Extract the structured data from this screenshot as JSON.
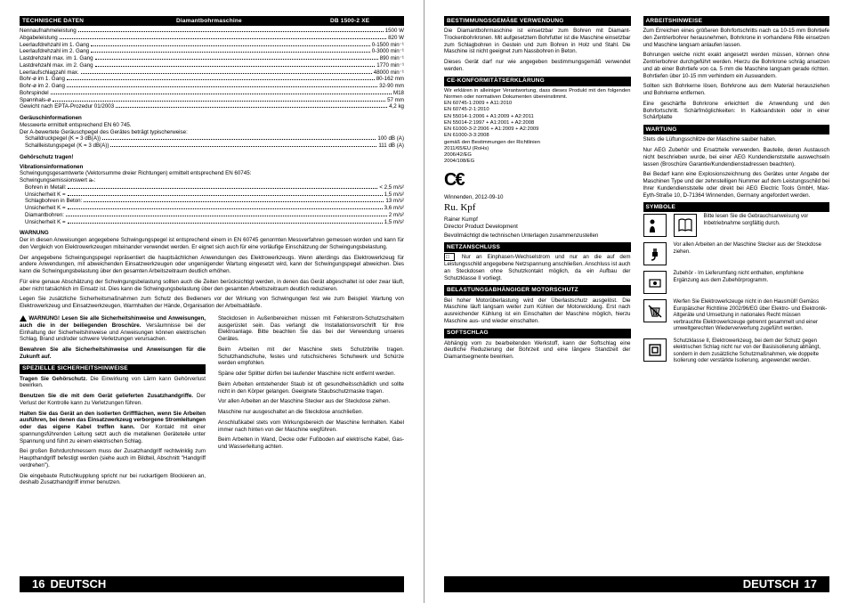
{
  "tech_header": {
    "c1": "TECHNISCHE DATEN",
    "c2": "Diamantbohrmaschine",
    "c3": "DB 1500-2 XE"
  },
  "specs": [
    {
      "l": "Nennaufnahmeleistung",
      "v": "1500 W"
    },
    {
      "l": "Abgabeleistung",
      "v": "820 W"
    },
    {
      "l": "Leerlaufdrehzahl im 1. Gang",
      "v": "0-1500 min⁻¹"
    },
    {
      "l": "Leerlaufdrehzahl im 2. Gang",
      "v": "0-3000 min⁻¹"
    },
    {
      "l": "Lastdrehzahl max. im 1. Gang",
      "v": "890 min⁻¹"
    },
    {
      "l": "Lastdrehzahl max. im 2. Gang",
      "v": "1770 min⁻¹"
    },
    {
      "l": "Leerlaufschlagzahl max.",
      "v": "48000 min⁻¹"
    },
    {
      "l": "Bohr-ø im 1. Gang",
      "v": "80-162 mm"
    },
    {
      "l": "Bohr-ø im 2. Gang",
      "v": "32-90 mm"
    },
    {
      "l": "Bohrspindel",
      "v": "M18"
    },
    {
      "l": "Spannhals-ø",
      "v": "57 mm"
    },
    {
      "l": "Gewicht nach EPTA-Prozedur 01/2003",
      "v": "4,2 kg"
    }
  ],
  "noise_title": "Geräuschinformationen",
  "noise_intro": "Messwerte ermittelt entsprechend EN 60 745.\nDer A-bewertete Geräuschpegel des Gerätes beträgt typischerweise:",
  "noise_specs": [
    {
      "l": "Schalldruckpegel (K = 3 dB(A))",
      "v": "100 dB (A)"
    },
    {
      "l": "Schallleistungspegel (K = 3 dB(A))",
      "v": "111 dB (A)"
    }
  ],
  "ear_protect": "Gehörschutz tragen!",
  "vib_title": "Vibrationsinformationen",
  "vib_intro": "Schwingungsgesamtwerte (Vektorsumme dreier Richtungen) ermittelt entsprechend EN 60745:\nSchwingungsemissionswert aₕ:",
  "vib_specs": [
    {
      "l": "Bohren in Metall:",
      "v": "< 2,5 m/s²"
    },
    {
      "l": "Unsicherheit K =",
      "v": "1,5 m/s²"
    },
    {
      "l": "Schlagbohren in Beton:",
      "v": "13 m/s²"
    },
    {
      "l": "Unsicherheit K =",
      "v": "3,6 m/s²"
    },
    {
      "l": "Diamantbohren:",
      "v": "2 m/s²"
    },
    {
      "l": "Unsicherheit K =",
      "v": "1,5 m/s²"
    }
  ],
  "warning_title": "WARNUNG",
  "warning_paras": [
    "Der in diesen Anweisungen angegebene Schwingungspegel ist entsprechend einem in EN 60745 genormten Messverfahren gemessen worden und kann für den Vergleich von Elektrowerkzeugen miteinander verwendet werden. Er eignet sich auch für eine vorläufige Einschätzung der Schwingungsbelastung.",
    "Der angegebene Schwingungspegel repräsentiert die hauptsächlichen Anwendungen des Elektrowerkzeugs. Wenn allerdings das Elektrowerkzeug für andere Anwendungen, mit abweichenden Einsatzwerkzeugen oder ungenügender Wartung eingesetzt wird, kann der Schwingungspegel abweichen. Dies kann die Schwingungsbelastung über den gesamten Arbeitszeitraum deutlich erhöhen.",
    "Für eine genaue Abschätzung der Schwingungsbelastung sollten auch die Zeiten berücksichtigt werden, in denen das Gerät abgeschaltet ist oder zwar läuft, aber nicht tatsächlich im Einsatz ist. Dies kann die Schwingungsbelastung über den gesamten Arbeitszeitraum deutlich reduzieren.",
    "Legen Sie zusätzliche Sicherheitsmaßnahmen zum Schutz des Bedieners vor der Wirkung von Schwingungen fest wie zum Beispiel: Wartung von Elektrowerkzeug und Einsatzwerkzeugen, Warmhalten der Hände, Organisation der Arbeitsabläufe."
  ],
  "warn_box": "WARNUNG! Lesen Sie alle Sicherheitshinweise und Anweisungen, auch die in der beiliegenden Broschüre.",
  "warn_box2": "Versäumnisse bei der Einhaltung der Sicherheitshinweise und Anweisungen können elektrischen Schlag, Brand und/oder schwere Verletzungen verursachen.",
  "warn_box3": "Bewahren Sie alle Sicherheitshinweise und Anweisungen für die Zukunft auf.",
  "safety_hdr": "SPEZIELLE SICHERHEITSHINWEISE",
  "safety_paras": [
    "<b>Tragen Sie Gehörschutz.</b> Die Einwirkung von Lärm kann Gehörverlust bewirken.",
    "<b>Benutzen Sie die mit dem Gerät gelieferten Zusatzhandgriffe.</b> Der Verlust der Kontrolle kann zu Verletzungen führen.",
    "<b>Halten Sie das Gerät an den isolierten Griffflächen, wenn Sie Arbeiten ausführen, bei denen das Einsatzwerkzeug verborgene Stromleitungen oder das eigene Kabel treffen kann.</b> Der Kontakt mit einer spannungsführenden Leitung setzt auch die metallenen Geräteteile unter Spannung und führt zu einem elektrischen Schlag.",
    "Bei großen Bohrdurchmessern muss der Zusatzhandgriff rechtwinklig zum Haupthandgriff befestigt werden (siehe auch im Bildteil, Abschnitt \"Handgriff verdrehen\").",
    "Die eingebaute Rutschkupplung spricht nur bei ruckartigem Blockieren an, deshalb Zusatzhandgriff immer benutzen."
  ],
  "col2_paras": [
    "Steckdosen in Außenbereichen müssen mit Fehlerstrom-Schutzschaltern ausgerüstet sein. Das verlangt die Installationsvorschrift für Ihre Elektroanlage. Bitte beachten Sie das bei der Verwendung unseres Gerätes.",
    "Beim Arbeiten mit der Maschine stets Schutzbrille tragen. Schutzhandschuhe, festes und rutschsicheres Schuhwerk und Schürze werden empfohlen.",
    "Späne oder Splitter dürfen bei laufender Maschine nicht entfernt werden.",
    "Beim Arbeiten entstehender Staub ist oft gesundheitsschädlich und sollte nicht in den Körper gelangen. Geeignete Staubschutzmaske tragen.",
    "Vor allen Arbeiten an der Maschine Stecker aus der Steckdose ziehen.",
    "Maschine nur ausgeschaltet an die Steckdose anschließen.",
    "Anschlußkabel stets vom Wirkungsbereich der Maschine fernhalten. Kabel immer nach hinten von der Maschine wegführen.",
    "Beim Arbeiten in Wand, Decke oder Fußboden auf elektrische Kabel, Gas- und Wasserleitung achten."
  ],
  "use_hdr": "BESTIMMUNGSGEMÄßE VERWENDUNG",
  "use_paras": [
    "Die Diamantbohrmaschine ist einsetzbar zum Bohren mit Diamant-Trockenbohrkronen. Mit aufgesetztem Bohrfutter ist die Maschine einsetzbar zum Schlagbohren in Gestein und zum Bohren in Holz und Stahl. Die Maschine ist nicht geeignet zum Nassbohren in Beton.",
    "Dieses Gerät darf nur wie angegeben bestimmungsgemäß verwendet werden."
  ],
  "ce_hdr": "CE-KONFORMITÄTSERKLÄRUNG",
  "ce_text": "Wir erklären in alleiniger Verantwortung, dass dieses Produkt mit den folgenden Normen oder normativen Dokumenten übereinstimmt.\nEN 60745-1:2009 + A11:2010\nEN 60745-2-1:2010\nEN 55014-1:2006 + A1:2009 + A2:2011\nEN 55014-2:1997 + A1:2001 + A2:2008\nEN 61000-3-2:2006 + A1:2009 + A2:2009\nEN 61000-3-3:2008\ngemäß den Bestimmungen der Richtlinien\n2011/65/EU (RoHs)\n2006/42/EG\n2004/108/EG",
  "ce_date": "Winnenden, 2012-09-10",
  "ce_name": "Rainer Kumpf",
  "ce_role": "Director Product Development",
  "ce_auth": "Bevollmächtigt die technischen Unterlagen zusammenzustellen",
  "netz_hdr": "NETZANSCHLUSS",
  "netz_text": "Nur an Einphasen-Wechselstrom und nur an die auf dem Leistungsschild angegebene Netzspannung anschließen. Anschluss ist auch an Steckdosen ohne Schutzkontakt möglich, da ein Aufbau der Schutzklasse II vorliegt.",
  "motor_hdr": "BELASTUNGSABHÄNGIGER MOTORSCHUTZ",
  "motor_text": "Bei hoher Motorüberlastung wird der Überlastschutz ausgelöst. Die Maschine läuft langsam weiter zum Kühlen der Motorwicklung. Erst nach ausreichender Kühlung ist ein Einschalten der Maschine möglich, hierzu Maschine aus- und wieder einschalten.",
  "soft_hdr": "SOFTSCHLAG",
  "soft_text": "Abhängig vom zu bearbeitenden Werkstoff, kann der Softschlag eine deutliche Reduzierung der Bohrzeit und eine längere Standzeit der Diamantsegmente bewirken.",
  "arbeit_hdr": "ARBEITSHINWEISE",
  "arbeit_paras": [
    "Zum Erreichen eines größeren Bohrfortschritts nach ca 10-15 mm Bohrtiefe den Zentrierbohrer herausnehmen, Bohrkrone in vorhandene Rille einsetzen und Maschine langsam anlaufen lassen.",
    "Bohrungen welche nicht exakt angesetzt werden müssen, können ohne Zentrierbohrer durchgeführt werden. Hierzu die Bohrkrone schräg ansetzen und ab einer Bohrtiefe von ca. 5 mm die Maschine langsam gerade richten. Bohrtiefen über 10-15 mm verhindern ein Auswandern.",
    "Sollten sich Bohrkerne lösen, Bohrkrone aus dem Material herausziehen und Bohrkerne entfernen.",
    "Eine geschärfte Bohrkrone erleichtert die Anwendung und den Bohrfortschritt. Schärfmöglichkeiten: In Kalksandstein oder in einer Schärfplatte"
  ],
  "wartung_hdr": "WARTUNG",
  "wartung_paras": [
    "Stets die Lüftungsschlitze der Maschine sauber halten.",
    "Nur AEG Zubehör und Ersatzteile verwenden. Bauteile, deren Austausch nicht beschrieben wurde, bei einer AEG Kundendienststelle auswechseln lassen (Broschüre Garantie/Kundendienstadressen beachten).",
    "Bei Bedarf kann eine Explosionszeichnung des Gerätes unter Angabe der Maschinen Type und der zehnstelligen Nummer auf dem Leistungsschild bei Ihrer Kundendienststelle oder direkt bei AEG Electric Tools GmbH, Max-Eyth-Straße 10, D-71364 Winnenden, Germany angefordert werden."
  ],
  "sym_hdr": "SYMBOLE",
  "sym1": "Bitte lesen Sie die Gebrauchsanweisung vor Inbetriebnahme sorgfältig durch.",
  "sym2": "Vor allen Arbeiten an der Maschine Stecker aus der Steckdose ziehen.",
  "sym3": "Zubehör - Im Lieferumfang nicht enthalten, empfohlene Ergänzung aus dem Zubehörprogramm.",
  "sym4": "Werfen Sie Elektrowerkzeuge nicht in den Hausmüll! Gemäss Europäischer Richtlinie 2002/96/EG über Elektro- und Elektronik-Altgeräte und Umsetzung in nationales Recht müssen verbrauchte Elektrowerkzeuge getrennt gesammelt und einer umweltgerechten Wiederverwertung zugeführt werden.",
  "sym5": "Schutzklasse II, Elektrowerkzeug, bei dem der Schutz gegen elektrischen Schlag nicht nur von der Basisisolierung abhängt, sondern in dem zusätzliche Schutzmaßnahmen, wie doppelte Isolierung oder verstärkte Isolierung, angewendet werden.",
  "footer_lang": "DEUTSCH",
  "pg_left": "16",
  "pg_right": "17"
}
